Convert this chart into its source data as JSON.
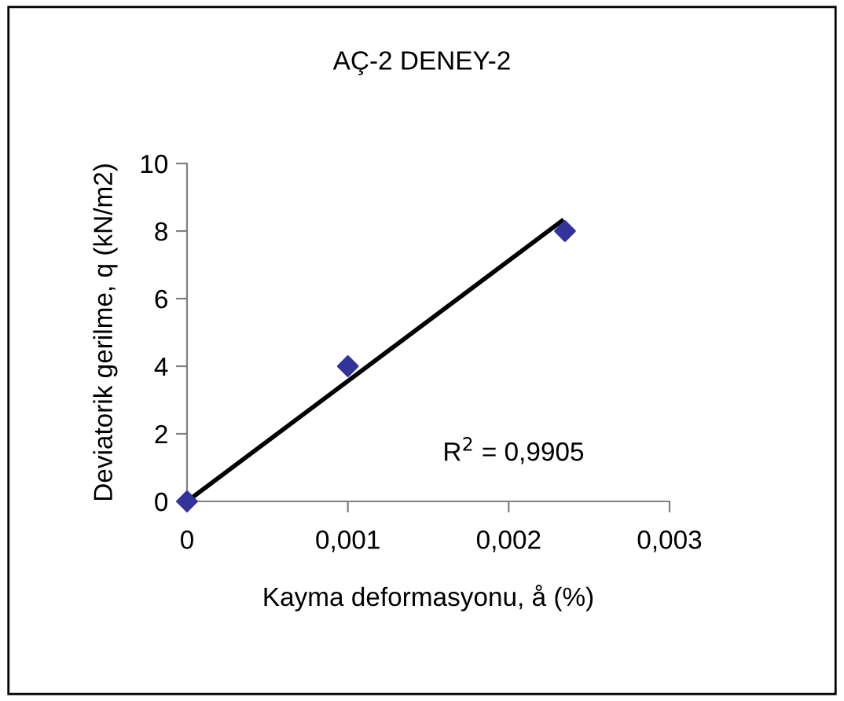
{
  "chart_data": {
    "type": "scatter",
    "title": "AÇ-2 DENEY-2",
    "xlabel": "Kayma deformasyonu, å (%)",
    "ylabel": "Deviatorik gerilme, q (kN/m2)",
    "series": [
      {
        "color": "#333399",
        "marker": "diamond",
        "x": [
          0,
          0.001,
          0.00235
        ],
        "values": [
          0,
          4,
          8
        ]
      },
      {
        "type": "line",
        "color": "#000000",
        "marker": "none",
        "line_style": "solid",
        "x": [
          0,
          0.00233
        ],
        "values": [
          0,
          8.3
        ]
      }
    ],
    "annotations": [
      "R$^{2}$ = 0,9905"
    ],
    "xlim": [
      0,
      0.003
    ],
    "xticks": [
      0,
      {
        "value": 0.001,
        "label": "0,001"
      },
      {
        "value": 0.002,
        "label": "0,002"
      },
      {
        "value": 0.003,
        "label": "0,003"
      }
    ],
    "ylim": [
      0,
      10
    ],
    "yticks": [
      0,
      2,
      4,
      6,
      8,
      10
    ],
    "grid": false,
    "legend": false
  }
}
